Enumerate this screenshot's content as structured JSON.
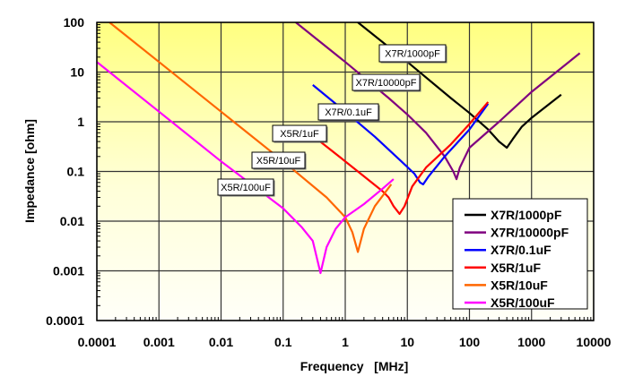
{
  "chart_data": {
    "type": "line",
    "title": "",
    "xlabel": "Frequency   [MHz]",
    "ylabel": "Impedance [ohm]",
    "xscale": "log",
    "yscale": "log",
    "xlim": [
      0.0001,
      10000
    ],
    "ylim": [
      0.0001,
      100
    ],
    "grid": true,
    "legend_position": "bottom-right",
    "x_ticks": [
      "0.0001",
      "0.001",
      "0.01",
      "0.1",
      "1",
      "10",
      "100",
      "1000",
      "10000"
    ],
    "y_ticks": [
      "0.0001",
      "0.001",
      "0.01",
      "0.1",
      "1",
      "10",
      "100"
    ],
    "series": [
      {
        "name": "X7R/1000pF",
        "color": "#000000",
        "points": [
          [
            1.6,
            100
          ],
          [
            10,
            16
          ],
          [
            50,
            3
          ],
          [
            100,
            1.5
          ],
          [
            200,
            0.7
          ],
          [
            300,
            0.4
          ],
          [
            400,
            0.3
          ],
          [
            500,
            0.45
          ],
          [
            700,
            0.8
          ],
          [
            1000,
            1.2
          ],
          [
            3000,
            3.5
          ]
        ]
      },
      {
        "name": "X7R/10000pF",
        "color": "#800080",
        "points": [
          [
            0.16,
            100
          ],
          [
            1,
            16
          ],
          [
            5,
            3
          ],
          [
            10,
            1.4
          ],
          [
            20,
            0.6
          ],
          [
            40,
            0.2
          ],
          [
            55,
            0.1
          ],
          [
            62,
            0.07
          ],
          [
            70,
            0.12
          ],
          [
            100,
            0.3
          ],
          [
            300,
            1
          ],
          [
            1000,
            4
          ],
          [
            6000,
            24
          ]
        ]
      },
      {
        "name": "X7R/0.1uF",
        "color": "#0000FF",
        "points": [
          [
            0.3,
            5.5
          ],
          [
            1,
            1.6
          ],
          [
            3,
            0.5
          ],
          [
            8,
            0.16
          ],
          [
            13,
            0.09
          ],
          [
            16,
            0.06
          ],
          [
            18,
            0.055
          ],
          [
            22,
            0.08
          ],
          [
            40,
            0.2
          ],
          [
            100,
            0.7
          ],
          [
            200,
            2.3
          ]
        ]
      },
      {
        "name": "X5R/1uF",
        "color": "#FF0000",
        "points": [
          [
            0.35,
            0.45
          ],
          [
            1,
            0.16
          ],
          [
            2,
            0.08
          ],
          [
            4,
            0.04
          ],
          [
            5,
            0.03
          ],
          [
            6,
            0.02
          ],
          [
            7.5,
            0.014
          ],
          [
            9,
            0.02
          ],
          [
            12,
            0.05
          ],
          [
            20,
            0.12
          ],
          [
            50,
            0.35
          ],
          [
            100,
            0.9
          ],
          [
            200,
            2.5
          ]
        ]
      },
      {
        "name": "X5R/10uF",
        "color": "#FF6600",
        "points": [
          [
            0.00016,
            100
          ],
          [
            0.001,
            16
          ],
          [
            0.01,
            1.6
          ],
          [
            0.1,
            0.16
          ],
          [
            0.5,
            0.03
          ],
          [
            1,
            0.012
          ],
          [
            1.3,
            0.006
          ],
          [
            1.6,
            0.0024
          ],
          [
            2,
            0.007
          ],
          [
            3,
            0.02
          ],
          [
            5.5,
            0.055
          ]
        ]
      },
      {
        "name": "X5R/100uF",
        "color": "#FF00FF",
        "points": [
          [
            0.0001,
            16
          ],
          [
            0.001,
            1.6
          ],
          [
            0.01,
            0.16
          ],
          [
            0.1,
            0.018
          ],
          [
            0.2,
            0.0075
          ],
          [
            0.3,
            0.004
          ],
          [
            0.4,
            0.0009
          ],
          [
            0.5,
            0.003
          ],
          [
            0.7,
            0.007
          ],
          [
            1,
            0.012
          ],
          [
            2,
            0.022
          ],
          [
            4,
            0.045
          ],
          [
            6,
            0.07
          ]
        ]
      }
    ],
    "annotations": [
      "X7R/1000pF",
      "X7R/10000pF",
      "X7R/0.1uF",
      "X5R/1uF",
      "X5R/10uF",
      "X5R/100uF"
    ]
  }
}
